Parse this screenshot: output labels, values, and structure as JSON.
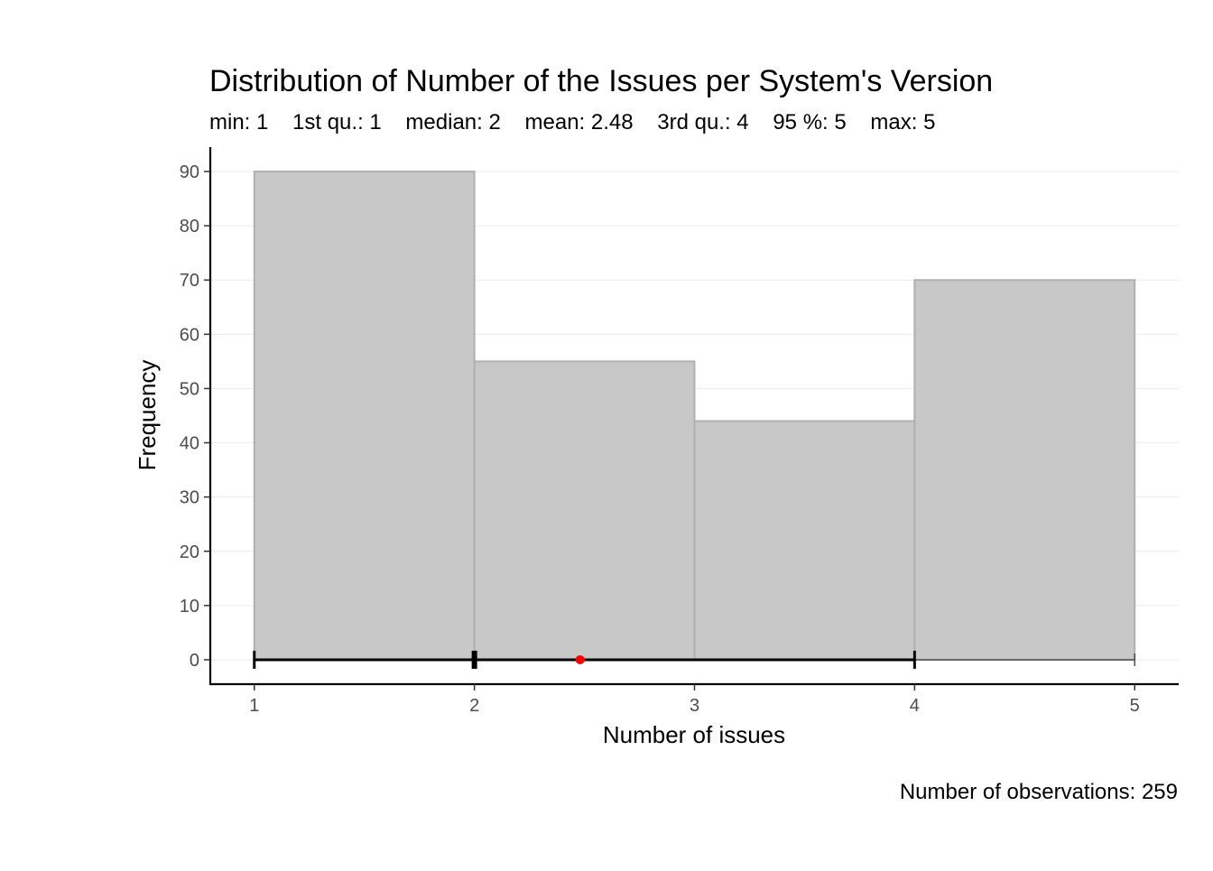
{
  "chart_data": {
    "type": "bar",
    "title": "Distribution of Number of the Issues per System's Version",
    "subtitle": "min: 1    1st qu.: 1    median: 2    mean: 2.48    3rd qu.: 4    95 %: 5    max: 5",
    "xlabel": "Number of issues",
    "ylabel": "Frequency",
    "caption": "Number of observations: 259",
    "bins": [
      {
        "x_start": 1,
        "x_end": 2,
        "value": 90
      },
      {
        "x_start": 2,
        "x_end": 3,
        "value": 55
      },
      {
        "x_start": 3,
        "x_end": 4,
        "value": 44
      },
      {
        "x_start": 4,
        "x_end": 5,
        "value": 70
      }
    ],
    "x_ticks": [
      "1",
      "2",
      "3",
      "4",
      "5"
    ],
    "y_ticks": [
      "0",
      "10",
      "20",
      "30",
      "40",
      "50",
      "60",
      "70",
      "80",
      "90"
    ],
    "xlim": [
      0.8,
      5.2
    ],
    "ylim": [
      -4.5,
      94.5
    ],
    "grid": "horizontal",
    "summary": {
      "min": 1,
      "q1": 1,
      "median": 2,
      "mean": 2.48,
      "q3": 4,
      "p95": 5,
      "max": 5
    },
    "colors": {
      "bar_fill": "#c8c8c8",
      "bar_stroke": "#b0b0b0",
      "mean_point": "#ff0000",
      "summary_line": "#000000",
      "tail_line": "#4d4d4d"
    }
  }
}
